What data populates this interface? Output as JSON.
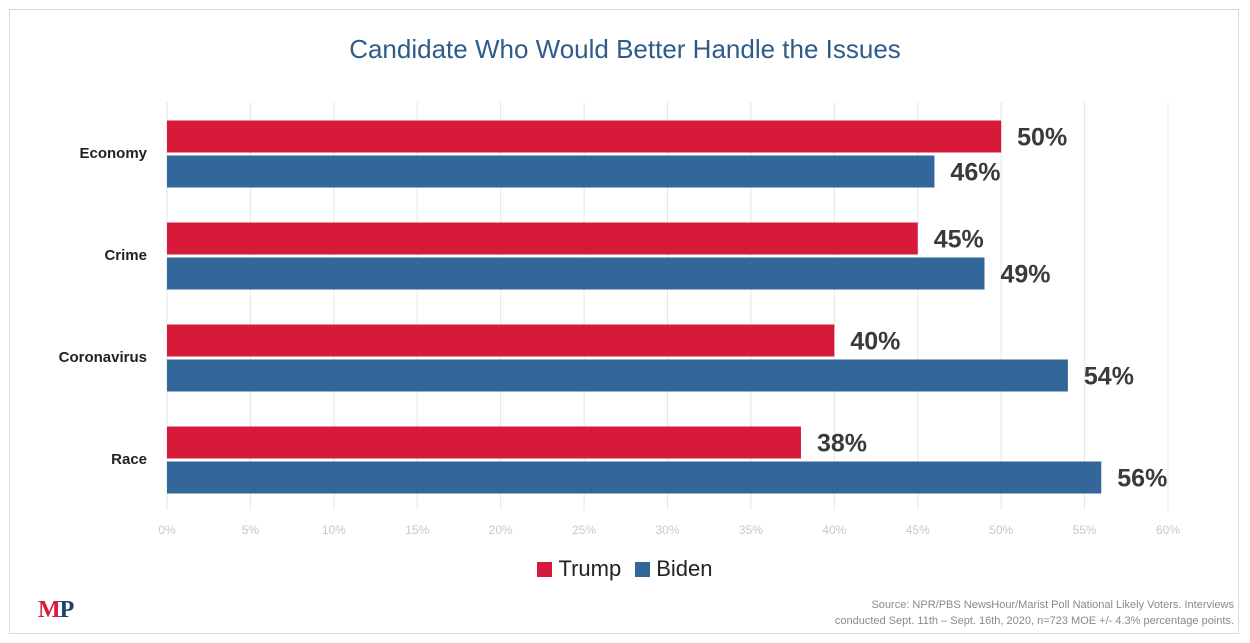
{
  "chart_data": {
    "type": "bar",
    "orientation": "horizontal",
    "title": "Candidate Who Would Better Handle the Issues",
    "categories": [
      "Economy",
      "Crime",
      "Coronavirus",
      "Race"
    ],
    "series": [
      {
        "name": "Trump",
        "color": "#d7193a",
        "values": [
          50,
          45,
          40,
          38
        ]
      },
      {
        "name": "Biden",
        "color": "#336699",
        "values": [
          46,
          49,
          54,
          56
        ]
      }
    ],
    "value_suffix": "%",
    "xlim": [
      0,
      60
    ],
    "xticks": [
      0,
      5,
      10,
      15,
      20,
      25,
      30,
      35,
      40,
      45,
      50,
      55,
      60
    ],
    "grid": "vertical",
    "legend_position": "bottom"
  },
  "legend": {
    "trump": "Trump",
    "biden": "Biden"
  },
  "footer": {
    "logo_m": "M",
    "logo_p": "P",
    "source_line1": "Source: NPR/PBS NewsHour/Marist Poll National Likely Voters. Interviews",
    "source_line2": "conducted Sept. 11th – Sept. 16th, 2020, n=723 MOE +/- 4.3% percentage points."
  }
}
